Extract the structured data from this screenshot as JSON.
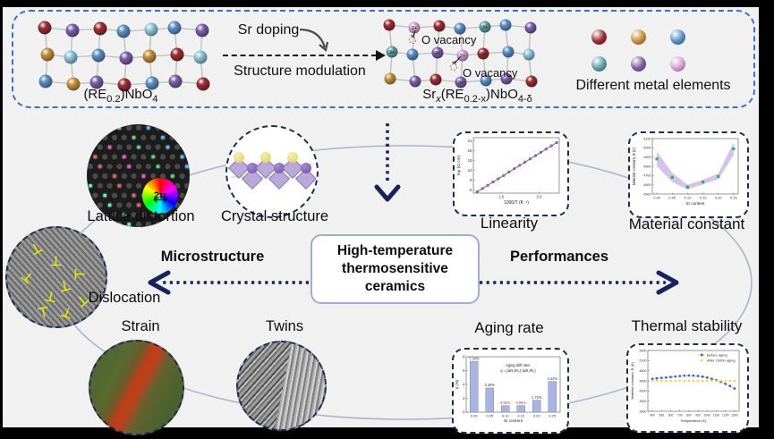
{
  "banner": {
    "sr_doping": "Sr doping",
    "structure_modulation": "Structure modulation",
    "o_vacancy": "O vacancy",
    "different_metals": "Different metal elements",
    "left_formula": {
      "b1": "(RE",
      "s1": "0.2",
      "b2": ")NbO",
      "s2": "4"
    },
    "right_formula": {
      "b1": "Sr",
      "s1": "x",
      "b2": "(RE",
      "s2": "0.2-x",
      "b3": ")NbO",
      "s3": "4-δ"
    },
    "left_lattice": [
      [
        "red",
        "purple",
        "red",
        "blue",
        "cyan",
        "blue",
        "purple"
      ],
      [
        "orange",
        "cyan",
        "blue",
        "purple",
        "orange",
        "red",
        "cyan"
      ],
      [
        "blue",
        "orange",
        "purple",
        "red",
        "blue",
        "purple",
        "red"
      ]
    ],
    "right_lattice": [
      [
        "red",
        "pink",
        "red",
        "blue",
        "teal",
        "blue",
        "purple"
      ],
      [
        "teal",
        "blue",
        "purple",
        "pink",
        "red",
        "blue",
        "cyan"
      ],
      [
        "orange",
        "purple",
        "red",
        "purple",
        "blue",
        "purple",
        "red"
      ]
    ],
    "ion_labels": [
      {
        "r": 0,
        "c": 1,
        "t": "2+"
      },
      {
        "r": 0,
        "c": 4,
        "t": "3+"
      },
      {
        "r": 1,
        "c": 0,
        "t": "3+"
      },
      {
        "r": 1,
        "c": 2,
        "t": "3+"
      },
      {
        "r": 1,
        "c": 3,
        "t": "2+"
      },
      {
        "r": 1,
        "c": 4,
        "t": "3+"
      },
      {
        "r": 2,
        "c": 3,
        "t": "3+"
      }
    ],
    "legend_elements": [
      "red",
      "orange",
      "blue",
      "teal",
      "purple",
      "pink"
    ]
  },
  "palette": {
    "red": "#9b2f35",
    "purple": "#7c60ab",
    "blue": "#5d8fc7",
    "cyan": "#92c6dd",
    "orange": "#c9903f",
    "teal": "#62a0a8",
    "pink": "#d9a3d9"
  },
  "center": {
    "line1": "High-temperature",
    "line2": "thermosensitive",
    "line3": "ceramics"
  },
  "branches": {
    "left": "Microstructure",
    "right": "Performances"
  },
  "micro_items": {
    "lattice_distortion": "Lattice distortion",
    "crystal_structure": "Crystal structure",
    "dislocation": "Dislocation",
    "strain": "Strain",
    "twins": "Twins"
  },
  "inset": {
    "label": "2π"
  },
  "dot_palette": [
    "#ff4fd8",
    "#59e06b",
    "#4fc3ff",
    "#ffe84f",
    "#b35bff",
    "#ff8c4f",
    "#4fffd4",
    "#ff5b5b"
  ],
  "chart_data": [
    {
      "id": "linearity",
      "type": "scatter",
      "title": "Linearity",
      "xlabel": "1000/T (K⁻¹)",
      "ylabel": "lnρ (Ω cm)",
      "xlim": [
        0.4,
        3.8
      ],
      "ylim": [
        5,
        22
      ],
      "xticks": [
        1.5,
        3.0
      ],
      "xtick_labels": [
        "1.5",
        "3.0"
      ],
      "yticks": [
        6,
        9,
        12,
        15,
        18,
        21
      ],
      "x": [
        0.55,
        0.76,
        0.97,
        1.18,
        1.39,
        1.6,
        1.81,
        2.02,
        2.23,
        2.44,
        2.65,
        2.86,
        3.07,
        3.28,
        3.49,
        3.7
      ],
      "y": [
        5.4,
        6.4,
        7.4,
        8.4,
        9.4,
        10.4,
        11.5,
        12.5,
        13.5,
        14.5,
        15.5,
        16.5,
        17.5,
        18.5,
        19.5,
        20.5
      ],
      "fit_line_color": "#e04040",
      "point_color": "#6d83cc"
    },
    {
      "id": "material_constant",
      "type": "line",
      "title": "Material constant",
      "xlabel": "Sr content",
      "ylabel": "Material constant, B (K)",
      "xlim": [
        -0.015,
        0.265
      ],
      "ylim": [
        4500,
        5100
      ],
      "xticks": [
        0,
        0.05,
        0.1,
        0.15,
        0.2,
        0.25
      ],
      "xtick_labels": [
        "0.00",
        "0.05",
        "0.10",
        "0.15",
        "0.20",
        "0.25"
      ],
      "yticks": [
        4500,
        4600,
        4700,
        4800,
        4900,
        5000,
        5100
      ],
      "x": [
        0,
        0.05,
        0.1,
        0.15,
        0.2,
        0.25
      ],
      "values": [
        4880,
        4680,
        4575,
        4630,
        4690,
        4990
      ],
      "band_upper": [
        4960,
        4730,
        4600,
        4655,
        4720,
        5060
      ],
      "band_lower": [
        4800,
        4630,
        4550,
        4605,
        4660,
        4920
      ],
      "band_color": "#c7b5e8",
      "point_color": "#2eaf64"
    },
    {
      "id": "aging_rate",
      "type": "bar",
      "title": "Aging rate",
      "xlabel": "Sr content",
      "ylabel": "q (%)",
      "ylim": [
        0,
        8
      ],
      "yticks": [
        0,
        2,
        4,
        6,
        8
      ],
      "categories": [
        "0.00",
        "0.05",
        "0.10",
        "0.15",
        "0.20",
        "0.25"
      ],
      "values": [
        7.34,
        3.49,
        0.95,
        0.96,
        1.72,
        4.44
      ],
      "value_labels": [
        "7.34%",
        "3.49%",
        "0.95%",
        "0.96%",
        "1.72%",
        "4.44%"
      ],
      "highlight_indices": [
        2,
        3
      ],
      "highlight_color": "#e03020",
      "bar_color": "#a9b4e0",
      "annotation": [
        "Aging drift rate:",
        "q = (ΔR₀/R₀)-(ΔR₁/R₁)"
      ]
    },
    {
      "id": "thermal_stability",
      "type": "line",
      "title": "Thermal stability",
      "xlabel": "Temperature (K)",
      "ylabel": "Material constant, B (K)",
      "xlim": [
        350,
        1350
      ],
      "ylim": [
        3600,
        5400
      ],
      "xticks": [
        400,
        500,
        600,
        700,
        800,
        900,
        1000,
        1100,
        1200,
        1300
      ],
      "yticks": [
        3600,
        3900,
        4200,
        4500,
        4800,
        5100,
        5400
      ],
      "x": [
        400,
        450,
        500,
        550,
        600,
        650,
        700,
        750,
        800,
        850,
        900,
        950,
        1000,
        1050,
        1100,
        1150,
        1200,
        1250,
        1300
      ],
      "series": [
        {
          "name": "Before aging",
          "color": "#3b5bd6",
          "marker": "square",
          "values": [
            4560,
            4575,
            4588,
            4600,
            4613,
            4628,
            4642,
            4654,
            4660,
            4656,
            4644,
            4624,
            4597,
            4562,
            4520,
            4470,
            4412,
            4346,
            4272
          ]
        },
        {
          "name": "After 1000h aging",
          "color": "#ffd21f",
          "marker": "circle",
          "values": [
            4500,
            4501,
            4499,
            4500,
            4502,
            4500,
            4499,
            4501,
            4500,
            4499,
            4501,
            4500,
            4498,
            4500,
            4501,
            4499,
            4500,
            4500,
            4499
          ]
        }
      ],
      "legend_position": "top-right"
    }
  ]
}
